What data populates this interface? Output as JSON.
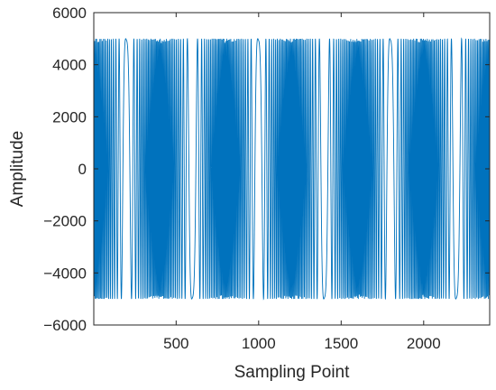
{
  "chart_data": {
    "type": "line",
    "title": "",
    "xlabel": "Sampling Point",
    "ylabel": "Amplitude",
    "xlim": [
      1,
      2400
    ],
    "ylim": [
      -6000,
      6000
    ],
    "xticks": [
      500,
      1000,
      1500,
      2000
    ],
    "yticks": [
      -6000,
      -4000,
      -2000,
      0,
      2000,
      4000,
      6000
    ],
    "xtick_labels": [
      "500",
      "1000",
      "1500",
      "2000"
    ],
    "ytick_labels": [
      "−6000",
      "−4000",
      "−2000",
      "0",
      "2000",
      "4000",
      "6000"
    ],
    "grid": false,
    "legend": "none",
    "series": [
      {
        "signal": "repeating linear FM chirp",
        "amplitude": 5000,
        "period_samples": 400,
        "slow_cycles_at": [
          200,
          600,
          1000,
          1400,
          1800,
          2200
        ],
        "color": "#0072BD"
      }
    ]
  }
}
